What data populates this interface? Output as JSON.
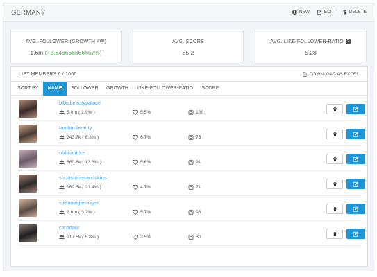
{
  "header": {
    "title": "GERMANY",
    "actions": [
      {
        "label": "NEW",
        "icon": "plus-icon"
      },
      {
        "label": "EDIT",
        "icon": "edit-icon"
      },
      {
        "label": "DELETE",
        "icon": "trash-icon"
      }
    ]
  },
  "stats": [
    {
      "label": "AVG. FOLLOWER (GROWTH 4W)",
      "value": "1.6m",
      "growth": "(+8.846666666667%)"
    },
    {
      "label": "AVG. SCORE",
      "value": "85.2"
    },
    {
      "label": "AVG. LIKE-FOLLOWER-RATIO",
      "value": "5.28",
      "help_icon": "?"
    }
  ],
  "list": {
    "count_label": "LIST MEMBERS 6 / 1000",
    "download_label": "DOWNLOAD AS EXCEL",
    "sort_label": "SORT BY",
    "sort_options": [
      "NAME",
      "FOLLOWER",
      "GROWTH",
      "LIKE-FOLLOWER-RATIO",
      "SCORE"
    ],
    "active_sort": "NAME",
    "members": [
      {
        "name": "bibisbeautypalace",
        "followers": "5.0m ( 2.9% )",
        "ratio": "5.5%",
        "score": "100"
      },
      {
        "name": "tamtambeauty",
        "followers": "243.7k ( 6.3% )",
        "ratio": "6.7%",
        "score": "73"
      },
      {
        "name": "ohhcouture",
        "followers": "860.8k ( 13.3% )",
        "ratio": "5.6%",
        "score": "91"
      },
      {
        "name": "shortstoriesandskirts",
        "followers": "162.3k ( 21.4% )",
        "ratio": "4.7%",
        "score": "71"
      },
      {
        "name": "stefaniegiesinger",
        "followers": "2.6m ( 3.2% )",
        "ratio": "5.7%",
        "score": "96"
      },
      {
        "name": "carodaur",
        "followers": "917.5k ( 5.8% )",
        "ratio": "3.5%",
        "score": "80"
      }
    ]
  },
  "colors": {
    "accent": "#2196d6",
    "link": "#4aa3d8",
    "growth": "#4caf50"
  }
}
